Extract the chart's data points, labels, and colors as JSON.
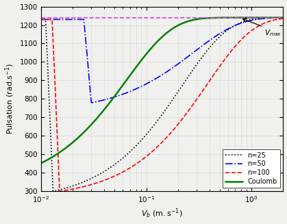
{
  "title": "",
  "xlabel": "V_b (m.s^{-1})",
  "ylabel": "Pulsation (rad.s^{-1})",
  "xlim": [
    0.01,
    2.0
  ],
  "ylim": [
    300,
    1300
  ],
  "omega_max": 1240,
  "hline_color": "#dd44dd",
  "hline_style": "dashed",
  "background_color": "#f9f9f9",
  "grid_color": "#bbbbbb",
  "legend_labels": [
    "n=25",
    "n=50",
    "n=100",
    "Coulomb"
  ]
}
